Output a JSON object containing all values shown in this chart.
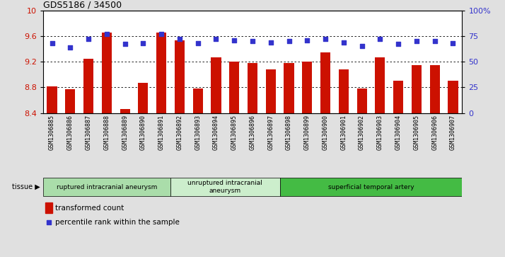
{
  "title": "GDS5186 / 34500",
  "samples": [
    "GSM1306885",
    "GSM1306886",
    "GSM1306887",
    "GSM1306888",
    "GSM1306889",
    "GSM1306890",
    "GSM1306891",
    "GSM1306892",
    "GSM1306893",
    "GSM1306894",
    "GSM1306895",
    "GSM1306896",
    "GSM1306897",
    "GSM1306898",
    "GSM1306899",
    "GSM1306900",
    "GSM1306901",
    "GSM1306902",
    "GSM1306903",
    "GSM1306904",
    "GSM1306905",
    "GSM1306906",
    "GSM1306907"
  ],
  "bar_values": [
    8.82,
    8.77,
    9.25,
    9.65,
    8.46,
    8.87,
    9.65,
    9.53,
    8.78,
    9.27,
    9.2,
    9.18,
    9.08,
    9.18,
    9.2,
    9.35,
    9.08,
    8.78,
    9.27,
    8.9,
    9.15,
    9.15,
    8.9
  ],
  "dot_values": [
    68,
    64,
    72,
    77,
    67,
    68,
    77,
    72,
    68,
    72,
    71,
    70,
    69,
    70,
    71,
    72,
    69,
    65,
    72,
    67,
    70,
    70,
    68
  ],
  "ylim_left": [
    8.4,
    10.0
  ],
  "ylim_right": [
    0,
    100
  ],
  "yticks_left": [
    8.4,
    8.8,
    9.2,
    9.6,
    10.0
  ],
  "yticks_right": [
    0,
    25,
    50,
    75,
    100
  ],
  "bar_color": "#cc1100",
  "dot_color": "#3333cc",
  "bg_color": "#e0e0e0",
  "plot_bg": "#ffffff",
  "groups": [
    {
      "label": "ruptured intracranial aneurysm",
      "start": 0,
      "end": 7,
      "color": "#aaddaa"
    },
    {
      "label": "unruptured intracranial\naneurysm",
      "start": 7,
      "end": 13,
      "color": "#cceecc"
    },
    {
      "label": "superficial temporal artery",
      "start": 13,
      "end": 23,
      "color": "#44bb44"
    }
  ],
  "legend_bar_label": "transformed count",
  "legend_dot_label": "percentile rank within the sample"
}
